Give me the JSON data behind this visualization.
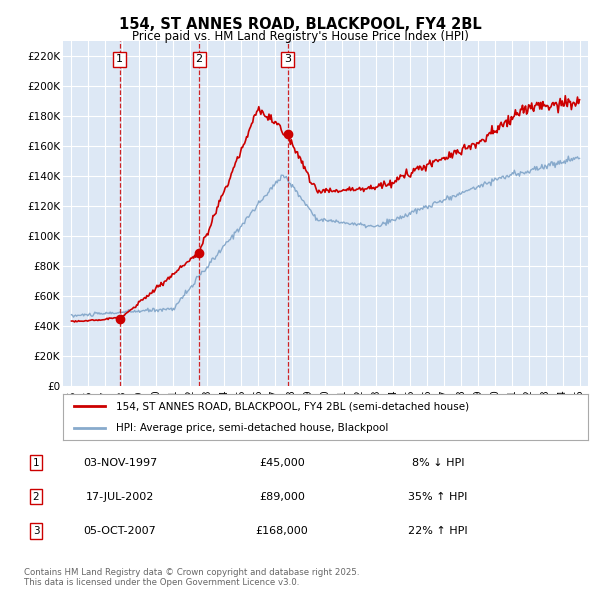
{
  "title_line1": "154, ST ANNES ROAD, BLACKPOOL, FY4 2BL",
  "title_line2": "Price paid vs. HM Land Registry's House Price Index (HPI)",
  "plot_bg_color": "#dde8f5",
  "red_line_color": "#cc0000",
  "blue_line_color": "#88aacc",
  "transactions": [
    {
      "date_num": 1997.84,
      "price": 45000,
      "label": "1",
      "date_str": "03-NOV-1997",
      "price_str": "£45,000",
      "pct": "8% ↓ HPI"
    },
    {
      "date_num": 2002.54,
      "price": 89000,
      "label": "2",
      "date_str": "17-JUL-2002",
      "price_str": "£89,000",
      "pct": "35% ↑ HPI"
    },
    {
      "date_num": 2007.76,
      "price": 168000,
      "label": "3",
      "date_str": "05-OCT-2007",
      "price_str": "£168,000",
      "pct": "22% ↑ HPI"
    }
  ],
  "legend_label_red": "154, ST ANNES ROAD, BLACKPOOL, FY4 2BL (semi-detached house)",
  "legend_label_blue": "HPI: Average price, semi-detached house, Blackpool",
  "footer": "Contains HM Land Registry data © Crown copyright and database right 2025.\nThis data is licensed under the Open Government Licence v3.0.",
  "ylim": [
    0,
    230000
  ],
  "xlim": [
    1994.5,
    2025.5
  ],
  "yticks": [
    0,
    20000,
    40000,
    60000,
    80000,
    100000,
    120000,
    140000,
    160000,
    180000,
    200000,
    220000
  ],
  "ytick_labels": [
    "£0",
    "£20K",
    "£40K",
    "£60K",
    "£80K",
    "£100K",
    "£120K",
    "£140K",
    "£160K",
    "£180K",
    "£200K",
    "£220K"
  ]
}
